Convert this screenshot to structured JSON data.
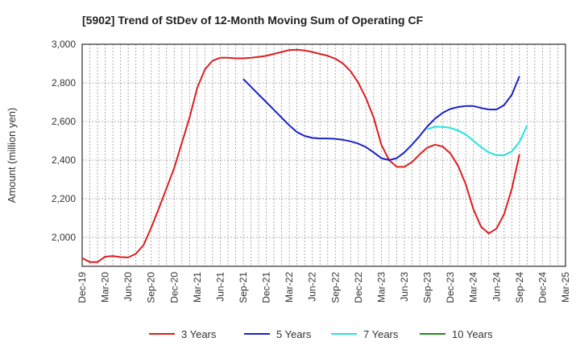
{
  "chart_data": {
    "type": "line",
    "title": "[5902]  Trend of StDev of 12-Month Moving Sum of Operating CF",
    "xlabel": "",
    "ylabel": "Amount (million yen)",
    "ylim": [
      1850,
      3000
    ],
    "yticks": [
      2000,
      2200,
      2400,
      2600,
      2800,
      3000
    ],
    "ytick_labels": [
      "2,000",
      "2,200",
      "2,400",
      "2,600",
      "2,800",
      "3,000"
    ],
    "x_categories": [
      "Dec-19",
      "Mar-20",
      "Jun-20",
      "Sep-20",
      "Dec-20",
      "Mar-21",
      "Jun-21",
      "Sep-21",
      "Dec-21",
      "Mar-22",
      "Jun-22",
      "Sep-22",
      "Dec-22",
      "Mar-23",
      "Jun-23",
      "Sep-23",
      "Dec-23",
      "Mar-24",
      "Jun-24",
      "Sep-24",
      "Dec-24",
      "Mar-25"
    ],
    "grid": true,
    "legend_position": "bottom",
    "series": [
      {
        "name": "3 Years",
        "color": "#dd1e1e",
        "start_index": 0,
        "values": [
          1893,
          1872,
          1872,
          1900,
          1903,
          1898,
          1896,
          1915,
          1960,
          2050,
          2150,
          2255,
          2360,
          2490,
          2620,
          2775,
          2870,
          2915,
          2930,
          2930,
          2927,
          2927,
          2930,
          2934,
          2940,
          2950,
          2960,
          2970,
          2972,
          2968,
          2960,
          2950,
          2940,
          2925,
          2900,
          2860,
          2800,
          2720,
          2620,
          2480,
          2400,
          2365,
          2365,
          2390,
          2430,
          2465,
          2480,
          2470,
          2435,
          2370,
          2275,
          2145,
          2055,
          2020,
          2045,
          2120,
          2250,
          2430
        ]
      },
      {
        "name": "5 Years",
        "color": "#1a22c7",
        "start_index": 21,
        "values": [
          2820,
          2780,
          2740,
          2700,
          2660,
          2620,
          2580,
          2545,
          2525,
          2515,
          2512,
          2512,
          2510,
          2505,
          2497,
          2485,
          2467,
          2440,
          2410,
          2400,
          2410,
          2440,
          2480,
          2525,
          2575,
          2615,
          2645,
          2665,
          2675,
          2680,
          2680,
          2670,
          2662,
          2662,
          2685,
          2738,
          2835
        ]
      },
      {
        "name": "7 Years",
        "color": "#22e3e3",
        "start_index": 45,
        "values": [
          2560,
          2573,
          2572,
          2567,
          2553,
          2532,
          2500,
          2467,
          2440,
          2425,
          2425,
          2445,
          2495,
          2580
        ]
      },
      {
        "name": "10 Years",
        "color": "#1e8c1e",
        "start_index": 0,
        "values": []
      }
    ]
  }
}
